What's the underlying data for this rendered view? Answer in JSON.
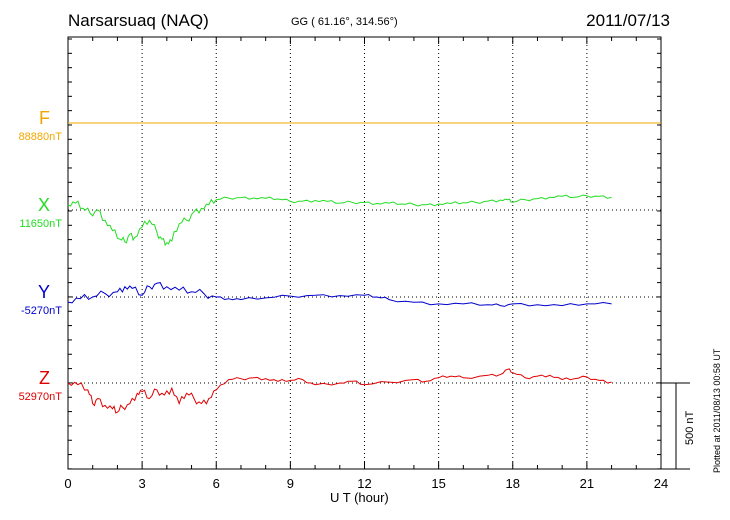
{
  "header": {
    "station": "Narsarsuaq (NAQ)",
    "coords": "GG ( 61.16°, 314.56°)",
    "date": "2011/07/13"
  },
  "plotted_note": "Plotted at 2011/08/13 00:58 UT",
  "scale_label": "500 nT",
  "colors": {
    "F": "#f0a800",
    "X": "#22dd22",
    "Y": "#0000cc",
    "Z": "#e00000"
  },
  "chart_data": {
    "type": "line",
    "title": "Narsarsuaq (NAQ)",
    "xlabel": "U T (hour)",
    "ylabel": "",
    "xlim": [
      0,
      24
    ],
    "x_ticks": [
      "0",
      "3",
      "6",
      "9",
      "12",
      "15",
      "18",
      "21",
      "24"
    ],
    "grid": true,
    "scale_bar_nT": 500,
    "series": [
      {
        "name": "F",
        "baseline_label": "88880nT",
        "baseline_nT": 88880,
        "x": [
          0,
          22
        ],
        "dev": [
          0,
          0
        ]
      },
      {
        "name": "X",
        "baseline_label": "11650nT",
        "baseline_nT": 11650,
        "x": [
          0,
          0.3,
          0.6,
          0.9,
          1.2,
          1.5,
          1.8,
          2.1,
          2.3,
          2.5,
          2.7,
          3.0,
          3.3,
          3.6,
          3.8,
          4.0,
          4.2,
          4.5,
          4.8,
          5.1,
          5.4,
          5.7,
          6.0,
          6.5,
          7.0,
          7.5,
          8.0,
          8.5,
          9.0,
          9.5,
          10.0,
          10.5,
          11.0,
          11.5,
          12.0,
          12.5,
          13.0,
          13.5,
          14.0,
          14.5,
          15.0,
          15.5,
          16.0,
          16.5,
          17.0,
          17.5,
          17.8,
          18.0,
          18.5,
          19.0,
          19.5,
          20.0,
          20.5,
          21.0,
          21.5,
          22.0
        ],
        "dev": [
          30,
          40,
          10,
          -20,
          0,
          -60,
          -120,
          -170,
          -185,
          -140,
          -160,
          -100,
          -60,
          -130,
          -170,
          -190,
          -180,
          -80,
          -60,
          -10,
          10,
          30,
          60,
          70,
          72,
          70,
          68,
          64,
          50,
          52,
          55,
          50,
          40,
          45,
          44,
          38,
          40,
          35,
          32,
          30,
          35,
          38,
          42,
          44,
          52,
          58,
          60,
          45,
          60,
          66,
          74,
          80,
          74,
          82,
          80,
          74
        ]
      },
      {
        "name": "Y",
        "baseline_label": "-5270nT",
        "baseline_nT": -5270,
        "x": [
          0,
          0.5,
          1.0,
          1.5,
          2.0,
          2.3,
          2.6,
          3.0,
          3.3,
          3.6,
          4.0,
          4.5,
          5.0,
          5.5,
          6.0,
          6.5,
          7.0,
          8.0,
          9.0,
          10.0,
          11.0,
          12.0,
          12.5,
          13.0,
          14.0,
          15.0,
          16.0,
          17.0,
          17.5,
          18.0,
          19.0,
          20.0,
          21.0,
          22.0
        ],
        "dev": [
          -30,
          -10,
          0,
          20,
          30,
          60,
          50,
          10,
          60,
          80,
          60,
          40,
          30,
          20,
          0,
          -10,
          -15,
          -5,
          5,
          10,
          8,
          10,
          0,
          -15,
          -30,
          -40,
          -40,
          -45,
          -50,
          -40,
          -45,
          -50,
          -40,
          -40
        ]
      },
      {
        "name": "Z",
        "baseline_label": "52970nT",
        "baseline_nT": 52970,
        "x": [
          0,
          0.4,
          0.8,
          1.0,
          1.2,
          1.5,
          1.8,
          2.0,
          2.2,
          2.5,
          2.8,
          3.0,
          3.3,
          3.6,
          3.9,
          4.2,
          4.5,
          4.8,
          5.1,
          5.4,
          5.7,
          6.0,
          6.5,
          7.0,
          7.5,
          8.0,
          8.5,
          9.0,
          9.5,
          10.0,
          11.0,
          11.5,
          12.0,
          13.0,
          14.0,
          14.5,
          15.0,
          15.5,
          16.0,
          17.0,
          17.5,
          17.8,
          18.0,
          18.5,
          19.0,
          19.5,
          20.0,
          20.5,
          21.0,
          21.5,
          22.0
        ],
        "dev": [
          0,
          -10,
          -40,
          -120,
          -90,
          -130,
          -150,
          -170,
          -140,
          -120,
          -60,
          -50,
          -90,
          -40,
          -70,
          -30,
          -120,
          -60,
          -90,
          -120,
          -90,
          -40,
          20,
          25,
          30,
          25,
          10,
          15,
          20,
          -10,
          0,
          10,
          -10,
          5,
          20,
          10,
          30,
          40,
          30,
          45,
          50,
          80,
          60,
          30,
          40,
          45,
          20,
          25,
          35,
          15,
          5
        ]
      }
    ]
  }
}
